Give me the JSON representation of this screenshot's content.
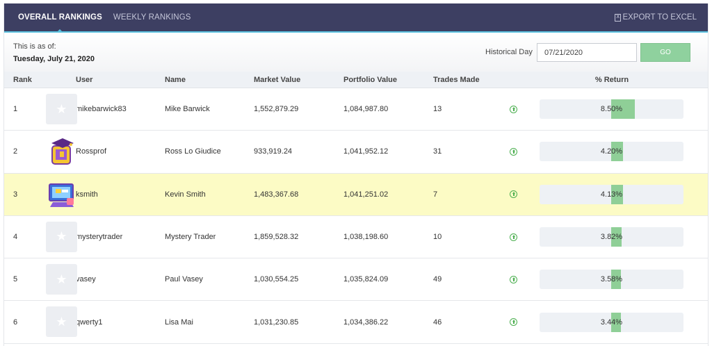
{
  "tabs": [
    {
      "label": "OVERALL RANKINGS",
      "active": true
    },
    {
      "label": "WEEKLY RANKINGS",
      "active": false
    }
  ],
  "export_label": "EXPORT TO EXCEL",
  "asof": {
    "label": "This is as of:",
    "date": "Tuesday, July 21, 2020"
  },
  "historical": {
    "label": "Historical Day",
    "value": "07/21/2020",
    "go_label": "GO"
  },
  "columns": [
    "Rank",
    "User",
    "Name",
    "Market Value",
    "Portfolio Value",
    "Trades Made",
    "% Return"
  ],
  "colors": {
    "header_bg": "#3d3f62",
    "accent": "#5bc0de",
    "go": "#8fd19e",
    "bar": "#8fcf97",
    "highlight": "#fcfbc5",
    "up_icon": "#4caf50"
  },
  "rows": [
    {
      "rank": "1",
      "user": "mikebarwick83",
      "name": "Mike Barwick",
      "market_value": "1,552,879.29",
      "portfolio_value": "1,084,987.80",
      "trades": "13",
      "return_text": "8.50%",
      "return_value": 8.5,
      "avatar": "star",
      "trend_icon": "arrow-up-circle",
      "highlighted": false
    },
    {
      "rank": "2",
      "user": "Rossprof",
      "name": "Ross Lo Giudice",
      "market_value": "933,919.24",
      "portfolio_value": "1,041,952.12",
      "trades": "31",
      "return_text": "4.20%",
      "return_value": 4.2,
      "avatar": "graduate",
      "trend_icon": "arrow-up-circle",
      "highlighted": false
    },
    {
      "rank": "3",
      "user": "ksmith",
      "name": "Kevin Smith",
      "market_value": "1,483,367.68",
      "portfolio_value": "1,041,251.02",
      "trades": "7",
      "return_text": "4.13%",
      "return_value": 4.13,
      "avatar": "computer",
      "trend_icon": "arrow-up-circle",
      "highlighted": true
    },
    {
      "rank": "4",
      "user": "mysterytrader",
      "name": "Mystery Trader",
      "market_value": "1,859,528.32",
      "portfolio_value": "1,038,198.60",
      "trades": "10",
      "return_text": "3.82%",
      "return_value": 3.82,
      "avatar": "star",
      "trend_icon": "arrow-up-circle",
      "highlighted": false
    },
    {
      "rank": "5",
      "user": "vasey",
      "name": "Paul Vasey",
      "market_value": "1,030,554.25",
      "portfolio_value": "1,035,824.09",
      "trades": "49",
      "return_text": "3.58%",
      "return_value": 3.58,
      "avatar": "star",
      "trend_icon": "arrow-up-circle",
      "highlighted": false
    },
    {
      "rank": "6",
      "user": "qwerty1",
      "name": "Lisa Mai",
      "market_value": "1,031,230.85",
      "portfolio_value": "1,034,386.22",
      "trades": "46",
      "return_text": "3.44%",
      "return_value": 3.44,
      "avatar": "star",
      "trend_icon": "arrow-up-circle",
      "highlighted": false
    }
  ]
}
